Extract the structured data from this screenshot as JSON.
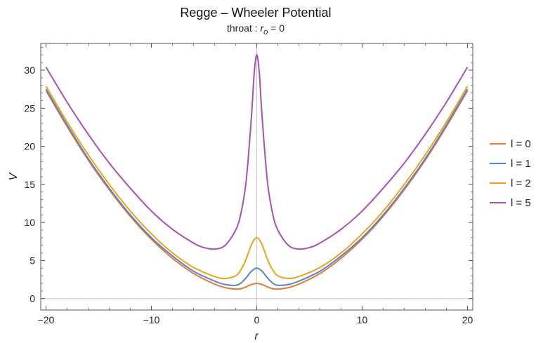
{
  "chart_data": {
    "type": "line",
    "title": "Regge – Wheeler Potential",
    "subtitle_prefix": "throat : ",
    "subtitle_var": "r",
    "subtitle_sub": "o",
    "subtitle_suffix": " = 0",
    "xlabel": "r",
    "ylabel": "V",
    "xlim": [
      -20.5,
      20.5
    ],
    "ylim": [
      -1.5,
      33.5
    ],
    "xticks": [
      -20,
      -10,
      0,
      10,
      20
    ],
    "xtick_labels": [
      "−20",
      "−10",
      "0",
      "10",
      "20"
    ],
    "yticks": [
      0,
      5,
      10,
      15,
      20,
      25,
      30
    ],
    "ytick_labels": [
      "0",
      "5",
      "10",
      "15",
      "20",
      "25",
      "30"
    ],
    "grid": false,
    "legend_position": "right",
    "series": [
      {
        "name": "l = 0",
        "color": "#e07b39",
        "x": [
          -20,
          -18,
          -16,
          -14,
          -12,
          -10,
          -8,
          -6,
          -4,
          -3,
          -2,
          -1.5,
          -1,
          -0.5,
          0,
          0.5,
          1,
          1.5,
          2,
          3,
          4,
          6,
          8,
          10,
          12,
          14,
          16,
          18,
          20
        ],
        "y": [
          27.3,
          22.6,
          18.2,
          14.3,
          10.8,
          7.8,
          5.3,
          3.3,
          1.9,
          1.45,
          1.25,
          1.3,
          1.55,
          1.85,
          2.0,
          1.85,
          1.55,
          1.3,
          1.25,
          1.45,
          1.9,
          3.3,
          5.3,
          7.8,
          10.8,
          14.3,
          18.2,
          22.6,
          27.3
        ]
      },
      {
        "name": "l = 1",
        "color": "#5e81c5",
        "x": [
          -20,
          -18,
          -16,
          -14,
          -12,
          -10,
          -8,
          -6,
          -4,
          -3,
          -2,
          -1.5,
          -1,
          -0.5,
          0,
          0.5,
          1,
          1.5,
          2,
          3,
          4,
          6,
          8,
          10,
          12,
          14,
          16,
          18,
          20
        ],
        "y": [
          27.5,
          22.8,
          18.4,
          14.5,
          11.0,
          8.0,
          5.6,
          3.6,
          2.3,
          1.85,
          1.75,
          2.05,
          2.75,
          3.6,
          4.0,
          3.6,
          2.75,
          2.05,
          1.75,
          1.85,
          2.3,
          3.6,
          5.6,
          8.0,
          11.0,
          14.5,
          18.4,
          22.8,
          27.5
        ]
      },
      {
        "name": "l = 2",
        "color": "#e9a41e",
        "x": [
          -20,
          -18,
          -16,
          -14,
          -12,
          -10,
          -8,
          -6,
          -4,
          -3,
          -2,
          -1.5,
          -1,
          -0.5,
          0,
          0.5,
          1,
          1.5,
          2,
          3,
          4,
          6,
          8,
          10,
          12,
          14,
          16,
          18,
          20
        ],
        "y": [
          27.9,
          23.2,
          18.9,
          15.0,
          11.5,
          8.5,
          6.0,
          4.1,
          2.9,
          2.65,
          3.0,
          3.8,
          5.2,
          7.1,
          8.0,
          7.1,
          5.2,
          3.8,
          3.0,
          2.65,
          2.9,
          4.1,
          6.0,
          8.5,
          11.5,
          15.0,
          18.9,
          23.2,
          27.9
        ]
      },
      {
        "name": "l = 5",
        "color": "#a94fb5",
        "x": [
          -20,
          -18,
          -16,
          -14,
          -12,
          -10,
          -8,
          -6,
          -5,
          -4,
          -3,
          -2,
          -1.5,
          -1,
          -0.5,
          -0.25,
          0,
          0.25,
          0.5,
          1,
          1.5,
          2,
          3,
          4,
          5,
          6,
          8,
          10,
          12,
          14,
          16,
          18,
          20
        ],
        "y": [
          30.4,
          25.8,
          21.6,
          17.8,
          14.5,
          11.5,
          9.1,
          7.3,
          6.7,
          6.5,
          7.0,
          9.0,
          11.2,
          15.5,
          24.0,
          29.5,
          32.0,
          29.5,
          24.0,
          15.5,
          11.2,
          9.0,
          7.0,
          6.5,
          6.7,
          7.3,
          9.1,
          11.5,
          14.5,
          17.8,
          21.6,
          25.8,
          30.4
        ]
      }
    ]
  }
}
